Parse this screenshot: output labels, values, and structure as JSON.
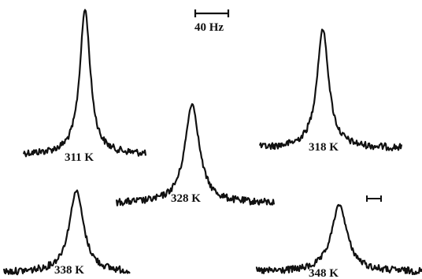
{
  "figure": {
    "scale_bar_label": "40 Hz",
    "ink_color": "#111111",
    "background": "#ffffff",
    "spectra": [
      {
        "id": "311",
        "label": "311 K"
      },
      {
        "id": "318",
        "label": "318 K"
      },
      {
        "id": "328",
        "label": "328 K"
      },
      {
        "id": "338",
        "label": "338 K"
      },
      {
        "id": "348",
        "label": "348 K"
      }
    ]
  }
}
